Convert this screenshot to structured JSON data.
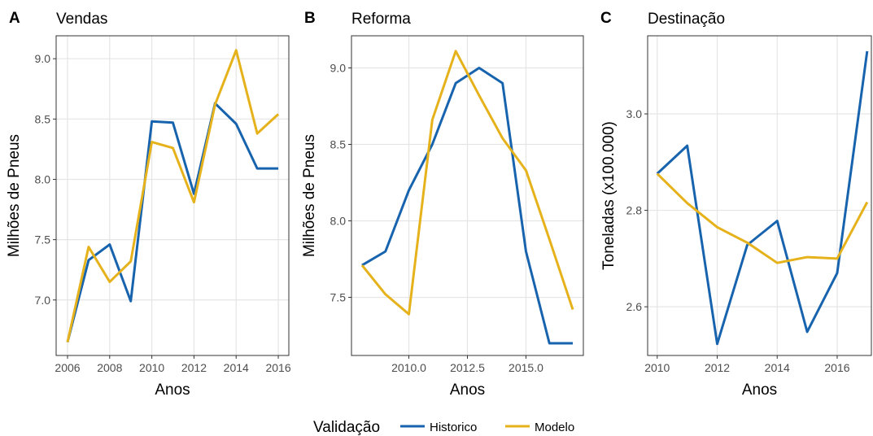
{
  "chart_data": [
    {
      "type": "line",
      "tag": "A",
      "title": "Vendas",
      "x_label": "Anos",
      "y_label": "Milhões de Pneus",
      "legend_title": "Validação",
      "x": [
        2006,
        2007,
        2008,
        2009,
        2010,
        2011,
        2012,
        2013,
        2014,
        2015,
        2016
      ],
      "series": [
        {
          "name": "Historico",
          "color": "#1763ad",
          "values": [
            6.65,
            7.33,
            7.46,
            6.99,
            8.48,
            8.47,
            7.88,
            8.63,
            8.46,
            8.09,
            8.09
          ]
        },
        {
          "name": "Modelo",
          "color": "#e6b21c",
          "values": [
            6.65,
            7.44,
            7.15,
            7.32,
            8.31,
            8.26,
            7.81,
            8.62,
            9.07,
            8.38,
            8.54
          ]
        }
      ],
      "xlim": [
        2005.46,
        2016.5
      ],
      "xticks": [
        2006,
        2008,
        2010,
        2012,
        2014,
        2016
      ],
      "ylim": [
        6.54,
        9.19
      ],
      "yticks": [
        {
          "value": 7,
          "label": "7.0"
        },
        {
          "value": 7.5,
          "label": "7.5"
        },
        {
          "value": 8,
          "label": "8.0"
        },
        {
          "value": 8.5,
          "label": "8.5"
        },
        {
          "value": 9,
          "label": "9.0"
        }
      ],
      "grid": true
    },
    {
      "type": "line",
      "tag": "B",
      "title": "Reforma",
      "x_label": "Anos",
      "y_label": "Milhões de Pneus",
      "x": [
        2008,
        2009,
        2010,
        2011,
        2012,
        2013,
        2014,
        2015,
        2016,
        2017
      ],
      "series": [
        {
          "name": "Historico",
          "color": "#1763ad",
          "values": [
            7.71,
            7.8,
            8.2,
            8.5,
            8.9,
            9.0,
            8.9,
            7.8,
            7.2,
            7.2
          ]
        },
        {
          "name": "Modelo",
          "color": "#e6b21c",
          "values": [
            7.71,
            7.52,
            7.39,
            8.66,
            9.11,
            8.82,
            8.54,
            8.33,
            7.88,
            7.42
          ]
        }
      ],
      "xlim": [
        2007.55,
        2017.45
      ],
      "xticks": [
        {
          "value": 2010,
          "label": "2010.0"
        },
        {
          "value": 2012.5,
          "label": "2012.5"
        },
        {
          "value": 2015,
          "label": "2015.0"
        }
      ],
      "ylim": [
        7.12,
        9.21
      ],
      "yticks": [
        {
          "value": 7.5,
          "label": "7.5"
        },
        {
          "value": 8,
          "label": "8.0"
        },
        {
          "value": 8.5,
          "label": "8.5"
        },
        {
          "value": 9,
          "label": "9.0"
        }
      ],
      "grid": true
    },
    {
      "type": "line",
      "tag": "C",
      "title": "Destinação",
      "x_label": "Anos",
      "y_label": "Toneladas (x100.000)",
      "x": [
        2010,
        2011,
        2012,
        2013,
        2014,
        2015,
        2016,
        2017
      ],
      "series": [
        {
          "name": "Historico",
          "color": "#1763ad",
          "values": [
            2.876,
            2.934,
            2.523,
            2.728,
            2.778,
            2.548,
            2.67,
            3.13
          ]
        },
        {
          "name": "Modelo",
          "color": "#e6b21c",
          "values": [
            2.876,
            2.815,
            2.765,
            2.733,
            2.691,
            2.703,
            2.7,
            2.817
          ]
        }
      ],
      "xlim": [
        2009.68,
        2017.14
      ],
      "xticks": [
        2010,
        2012,
        2014,
        2016
      ],
      "ylim": [
        2.499,
        3.162
      ],
      "yticks": [
        {
          "value": 2.6,
          "label": "2.6"
        },
        {
          "value": 2.8,
          "label": "2.8"
        },
        {
          "value": 3,
          "label": "3.0"
        }
      ],
      "grid": true
    }
  ]
}
